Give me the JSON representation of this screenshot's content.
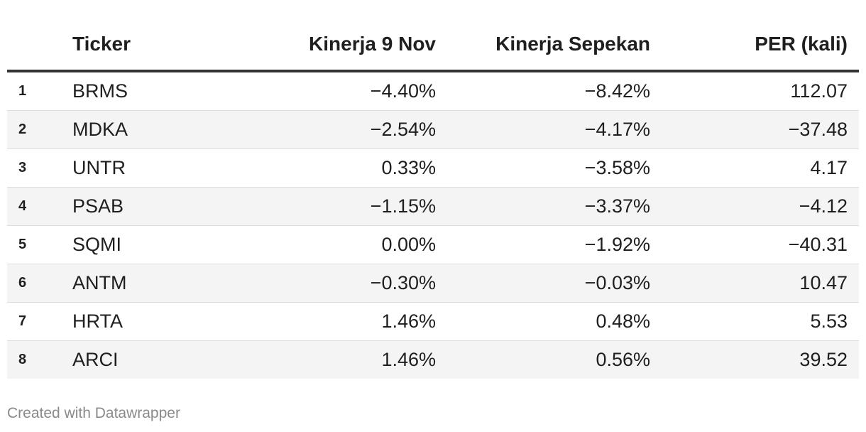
{
  "chart_data": {
    "type": "table",
    "columns": [
      "",
      "Ticker",
      "Kinerja 9 Nov",
      "Kinerja Sepekan",
      "PER (kali)"
    ],
    "rows": [
      {
        "no": "1",
        "ticker": "BRMS",
        "kinerja_9_nov": "−4.40%",
        "kinerja_sepekan": "−8.42%",
        "per": "112.07"
      },
      {
        "no": "2",
        "ticker": "MDKA",
        "kinerja_9_nov": "−2.54%",
        "kinerja_sepekan": "−4.17%",
        "per": "−37.48"
      },
      {
        "no": "3",
        "ticker": "UNTR",
        "kinerja_9_nov": "0.33%",
        "kinerja_sepekan": "−3.58%",
        "per": "4.17"
      },
      {
        "no": "4",
        "ticker": "PSAB",
        "kinerja_9_nov": "−1.15%",
        "kinerja_sepekan": "−3.37%",
        "per": "−4.12"
      },
      {
        "no": "5",
        "ticker": "SQMI",
        "kinerja_9_nov": "0.00%",
        "kinerja_sepekan": "−1.92%",
        "per": "−40.31"
      },
      {
        "no": "6",
        "ticker": "ANTM",
        "kinerja_9_nov": "−0.30%",
        "kinerja_sepekan": "−0.03%",
        "per": "10.47"
      },
      {
        "no": "7",
        "ticker": "HRTA",
        "kinerja_9_nov": "1.46%",
        "kinerja_sepekan": "0.48%",
        "per": "5.53"
      },
      {
        "no": "8",
        "ticker": "ARCI",
        "kinerja_9_nov": "1.46%",
        "kinerja_sepekan": "0.56%",
        "per": "39.52"
      }
    ]
  },
  "footer": {
    "credit": "Created with Datawrapper"
  }
}
